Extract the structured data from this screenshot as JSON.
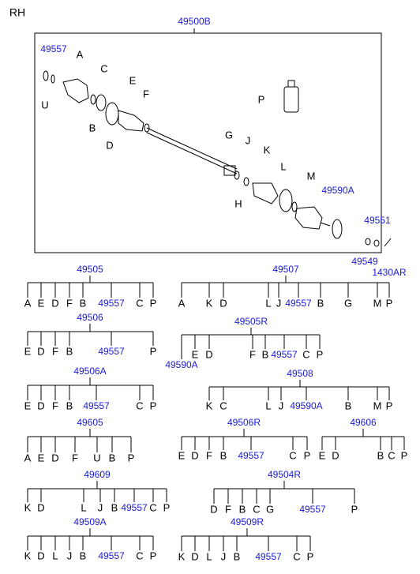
{
  "side": "RH",
  "diagram": {
    "title": "49500B",
    "labels": [
      "49557",
      "A",
      "C",
      "E",
      "F",
      "U",
      "B",
      "D",
      "P",
      "G",
      "J",
      "K",
      "H",
      "L",
      "M",
      "49590A",
      "49551",
      "49549",
      "1430AR"
    ]
  },
  "trees": [
    {
      "root": "49505",
      "leaves": [
        "A",
        "E",
        "D",
        "F",
        "B",
        "49557",
        "C",
        "P"
      ]
    },
    {
      "root": "49507",
      "leaves": [
        "A",
        "K",
        "D",
        "L",
        "J",
        "49557",
        "B",
        "G",
        "M",
        "P"
      ]
    },
    {
      "root": "49506",
      "leaves": [
        "E",
        "D",
        "F",
        "B",
        "49557",
        "P"
      ]
    },
    {
      "root": "49505R",
      "leaves": [
        "49590A",
        "E",
        "D",
        "F",
        "B",
        "49557",
        "C",
        "P"
      ]
    },
    {
      "root": "49506A",
      "leaves": [
        "E",
        "D",
        "F",
        "B",
        "49557",
        "C",
        "P"
      ]
    },
    {
      "root": "49508",
      "leaves": [
        "K",
        "C",
        "L",
        "J",
        "49590A",
        "B",
        "M",
        "P"
      ]
    },
    {
      "root": "49605",
      "leaves": [
        "A",
        "E",
        "D",
        "F",
        "U",
        "B",
        "P"
      ]
    },
    {
      "root": "49506R",
      "leaves": [
        "E",
        "D",
        "F",
        "B",
        "49557",
        "C",
        "P"
      ]
    },
    {
      "root": "49606",
      "leaves": [
        "E",
        "D",
        "B",
        "C",
        "P"
      ]
    },
    {
      "root": "49609",
      "leaves": [
        "K",
        "D",
        "L",
        "J",
        "B",
        "49557",
        "C",
        "P"
      ]
    },
    {
      "root": "49504R",
      "leaves": [
        "D",
        "F",
        "B",
        "C",
        "G",
        "49557",
        "P"
      ]
    },
    {
      "root": "49509A",
      "leaves": [
        "K",
        "D",
        "L",
        "J",
        "B",
        "49557",
        "C",
        "P"
      ]
    },
    {
      "root": "49509R",
      "leaves": [
        "K",
        "D",
        "L",
        "J",
        "B",
        "49557",
        "C",
        "P"
      ]
    }
  ]
}
